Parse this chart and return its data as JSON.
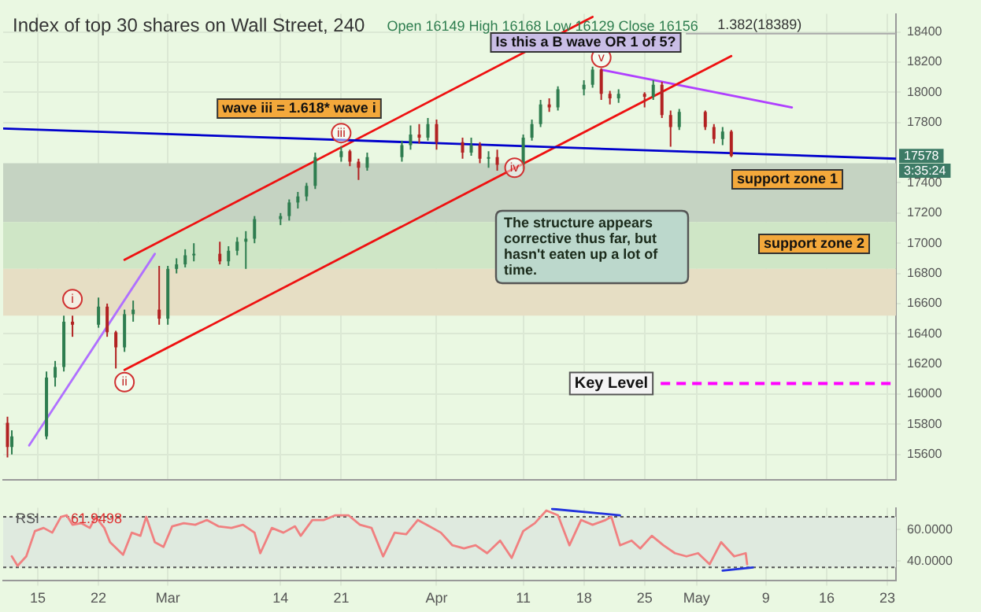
{
  "chart_data": [
    {
      "type": "candlestick",
      "title": "Index of top 30 shares on Wall Street, 240",
      "subtitle": "Open 16149 High 16168 Low 16129 Close 16156",
      "x": [
        "--02-11T12:00",
        "--02-12",
        "--02-16",
        "--02-17",
        "--02-18",
        "--02-19",
        "--02-22",
        "--02-23",
        "--02-24",
        "--02-25",
        "--02-26",
        "--02-29",
        "--03-01",
        "--03-02",
        "--03-03",
        "--03-04",
        "--03-07",
        "--03-08",
        "--03-09",
        "--03-10",
        "--03-11",
        "--03-14",
        "--03-15",
        "--03-16",
        "--03-17",
        "--03-18",
        "--03-21",
        "--03-22",
        "--03-23",
        "--03-24",
        "--03-28",
        "--03-29",
        "--03-30",
        "--03-31",
        "--04-01",
        "--04-04",
        "--04-05",
        "--04-06",
        "--04-07",
        "--04-08",
        "--04-11",
        "--04-12",
        "--04-13",
        "--04-14",
        "--04-15",
        "--04-18",
        "--04-19",
        "--04-20",
        "--04-21",
        "--04-22",
        "--04-25",
        "--04-26",
        "--04-27",
        "--04-28",
        "--04-29",
        "--05-02",
        "--05-03",
        "--05-04",
        "--05-05"
      ],
      "ohlc": [
        [
          15810,
          15850,
          15580,
          15650
        ],
        [
          15650,
          15760,
          15600,
          15720
        ],
        [
          15720,
          16150,
          15700,
          16110
        ],
        [
          16110,
          16220,
          16050,
          16180
        ],
        [
          16180,
          16520,
          16150,
          16480
        ],
        [
          16480,
          16520,
          16380,
          16460
        ],
        [
          16460,
          16640,
          16440,
          16580
        ],
        [
          16580,
          16600,
          16380,
          16410
        ],
        [
          16410,
          16420,
          16170,
          16310
        ],
        [
          16310,
          16560,
          16280,
          16530
        ],
        [
          16530,
          16620,
          16480,
          16560
        ],
        [
          16560,
          16850,
          16460,
          16500
        ],
        [
          16500,
          16850,
          16460,
          16830
        ],
        [
          16830,
          16900,
          16800,
          16860
        ],
        [
          16860,
          16960,
          16840,
          16920
        ],
        [
          16920,
          17000,
          16880,
          16930
        ],
        [
          16930,
          17010,
          16860,
          16880
        ],
        [
          16880,
          16980,
          16850,
          16950
        ],
        [
          16950,
          17040,
          16920,
          17010
        ],
        [
          17010,
          17080,
          16830,
          17030
        ],
        [
          17030,
          17180,
          17000,
          17160
        ],
        [
          17160,
          17200,
          17120,
          17180
        ],
        [
          17180,
          17290,
          17150,
          17270
        ],
        [
          17270,
          17340,
          17230,
          17310
        ],
        [
          17310,
          17400,
          17280,
          17380
        ],
        [
          17380,
          17600,
          17360,
          17570
        ],
        [
          17570,
          17640,
          17540,
          17610
        ],
        [
          17610,
          17620,
          17510,
          17540
        ],
        [
          17540,
          17560,
          17420,
          17500
        ],
        [
          17500,
          17600,
          17480,
          17570
        ],
        [
          17570,
          17680,
          17540,
          17650
        ],
        [
          17650,
          17780,
          17620,
          17720
        ],
        [
          17720,
          17790,
          17660,
          17700
        ],
        [
          17700,
          17830,
          17680,
          17790
        ],
        [
          17790,
          17820,
          17620,
          17670
        ],
        [
          17670,
          17700,
          17560,
          17600
        ],
        [
          17600,
          17700,
          17580,
          17650
        ],
        [
          17650,
          17670,
          17530,
          17560
        ],
        [
          17560,
          17610,
          17500,
          17570
        ],
        [
          17570,
          17620,
          17480,
          17520
        ],
        [
          17520,
          17720,
          17490,
          17700
        ],
        [
          17700,
          17820,
          17680,
          17790
        ],
        [
          17790,
          17950,
          17770,
          17920
        ],
        [
          17920,
          17960,
          17870,
          17900
        ],
        [
          17900,
          18040,
          17880,
          18020
        ],
        [
          18020,
          18080,
          17980,
          18050
        ],
        [
          18050,
          18170,
          18030,
          18150
        ],
        [
          18150,
          18160,
          17950,
          17990
        ],
        [
          17990,
          18010,
          17920,
          17960
        ],
        [
          17960,
          18020,
          17930,
          17990
        ],
        [
          17990,
          18000,
          17900,
          17970
        ],
        [
          17970,
          18080,
          17950,
          18050
        ],
        [
          18050,
          18070,
          17830,
          17850
        ],
        [
          17850,
          17880,
          17640,
          17770
        ],
        [
          17770,
          17890,
          17750,
          17870
        ],
        [
          17870,
          17880,
          17750,
          17770
        ],
        [
          17770,
          17790,
          17660,
          17690
        ],
        [
          17690,
          17770,
          17650,
          17740
        ],
        [
          17740,
          17750,
          17570,
          17578
        ]
      ],
      "colors": [
        "#b22222",
        "#2e7d4f",
        "#2e7d4f",
        "#2e7d4f",
        "#2e7d4f",
        "#b22222",
        "#2e7d4f",
        "#b22222",
        "#b22222",
        "#2e7d4f",
        "#2e7d4f",
        "#b22222",
        "#2e7d4f",
        "#2e7d4f",
        "#2e7d4f",
        "#2e7d4f",
        "#b22222",
        "#2e7d4f",
        "#2e7d4f",
        "#2e7d4f",
        "#2e7d4f",
        "#2e7d4f",
        "#2e7d4f",
        "#2e7d4f",
        "#2e7d4f",
        "#2e7d4f",
        "#2e7d4f",
        "#b22222",
        "#b22222",
        "#2e7d4f",
        "#2e7d4f",
        "#2e7d4f",
        "#b22222",
        "#2e7d4f",
        "#b22222",
        "#b22222",
        "#2e7d4f",
        "#b22222",
        "#2e7d4f",
        "#b22222",
        "#2e7d4f",
        "#2e7d4f",
        "#2e7d4f",
        "#b22222",
        "#2e7d4f",
        "#2e7d4f",
        "#2e7d4f",
        "#b22222",
        "#b22222",
        "#2e7d4f",
        "#b22222",
        "#2e7d4f",
        "#b22222",
        "#b22222",
        "#2e7d4f",
        "#b22222",
        "#b22222",
        "#2e7d4f",
        "#b22222"
      ],
      "series": [
        {
          "type": "line",
          "color": "#0000cc",
          "x": [
            "--02-11",
            "--05-24"
          ],
          "values": [
            17760,
            17560
          ]
        },
        {
          "type": "line",
          "color": "#ee1111",
          "x": [
            "--02-25",
            "--04-19"
          ],
          "values": [
            16890,
            18500
          ]
        },
        {
          "type": "line",
          "color": "#ee1111",
          "x": [
            "--02-25",
            "--05-05"
          ],
          "values": [
            16160,
            18240
          ]
        },
        {
          "type": "line",
          "color": "#b040ff",
          "x": [
            "--04-20",
            "--05-12"
          ],
          "values": [
            18150,
            17900
          ]
        },
        {
          "type": "line",
          "color": "#b070ff",
          "x": [
            "--02-14",
            "--02-28T12:00"
          ],
          "values": [
            15660,
            16930
          ]
        }
      ],
      "xlim": [
        "--02-11",
        "--05-24"
      ],
      "xticks": [
        {
          "value": "--02-15",
          "label": null
        },
        {
          "value": "--02-22",
          "label": null
        },
        {
          "value": "--03-01",
          "label": null
        },
        {
          "value": "--03-14",
          "label": null
        },
        {
          "value": "--03-21",
          "label": null
        },
        {
          "value": "--04-01",
          "label": null
        },
        {
          "value": "--04-11",
          "label": null
        },
        {
          "value": "--04-18",
          "label": null
        },
        {
          "value": "--04-25",
          "label": null
        },
        {
          "value": "--05-01",
          "label": null
        },
        {
          "value": "--05-09",
          "label": null
        },
        {
          "value": "--05-16",
          "label": null
        },
        {
          "value": "--05-23",
          "label": null
        }
      ],
      "ylim": [
        15430,
        18520
      ],
      "yticks": [
        15600,
        15800,
        16000,
        16200,
        16400,
        16600,
        16800,
        17000,
        17200,
        17400,
        17800,
        18000,
        18200,
        18400
      ],
      "tick_labels": "y",
      "grid": true,
      "bands": [
        {
          "axis": "y",
          "from": 17140,
          "to": 17530,
          "color": "#c5d3c2"
        },
        {
          "axis": "y",
          "from": 16830,
          "to": 17140,
          "color": "#cfe6c6"
        },
        {
          "axis": "y",
          "from": 16520,
          "to": 16830,
          "color": "#e6dec4"
        }
      ],
      "ref_lines": [
        {
          "axis": "y",
          "value": 18389,
          "label": "1.382(18389)",
          "color": "#aaaaaa"
        },
        {
          "axis": "y",
          "value": 16070,
          "label": "Key Level",
          "color": "#ff00ff",
          "line_style": "dashed"
        }
      ],
      "annotations": [
        {
          "text": "i",
          "x": "--02-19",
          "y": 16630
        },
        {
          "text": "ii",
          "x": "--02-25",
          "y": 16080
        },
        {
          "text": "iii",
          "x": "--03-21",
          "y": 17730
        },
        {
          "text": "iv",
          "x": "--04-10",
          "y": 17500
        },
        {
          "text": "v",
          "x": "--04-20",
          "y": 18230
        },
        "wave iii = 1.618* wave i",
        "Is this a B wave OR 1 of 5?",
        "The structure appears corrective thus far, but hasn't eaten up a lot of time.",
        "support zone 1",
        "support zone 2",
        {
          "text": "17578",
          "x": "--05-24",
          "y": 17578
        },
        {
          "text": "3:35:24",
          "x": "--05-24",
          "y": 17480
        }
      ]
    },
    {
      "type": "line",
      "series": [
        {
          "color": "#f08080",
          "x": [
            "--02-12T00:00",
            "--02-12T16:00",
            "--02-13T16:00",
            "--02-14T16:00",
            "--02-15T16:00",
            "--02-16T16:00",
            "--02-17T16:00",
            "--02-18T08:00",
            "--02-19T00:00",
            "--02-20T00:00",
            "--02-21T00:00",
            "--02-21T16:00",
            "--02-22T16:00",
            "--02-23T08:00",
            "--02-24T20:00",
            "--02-25T20:00",
            "--02-26T20:00",
            "--02-27T12:00",
            "--02-28T12:00",
            "--02-29T12:00",
            "--03-01T12:00",
            "--03-02T20:00",
            "--03-04T04:00",
            "--03-05T12:00",
            "--03-06T20:00",
            "--03-08T08:00",
            "--03-09T16:00",
            "--03-11T00:00",
            "--03-11T16:00",
            "--03-13T00:00",
            "--03-14T08:00",
            "--03-15T16:00",
            "--03-16T08:00",
            "--03-17T16:00",
            "--03-19T00:00",
            "--03-20T08:00",
            "--03-21T20:00",
            "--03-23T04:00",
            "--03-24T12:00",
            "--03-25T20:00",
            "--03-27T04:00",
            "--03-28T12:00",
            "--03-29T20:00",
            "--03-31T04:00",
            "--04-01T12:00",
            "--04-02T20:00",
            "--04-04T04:00",
            "--04-05T12:00",
            "--04-06T20:00",
            "--04-08T08:00",
            "--04-09T16:00",
            "--04-11T00:00",
            "--04-12T08:00",
            "--04-13T16:00",
            "--04-15T00:00",
            "--04-16T08:00",
            "--04-17T16:00",
            "--04-19T00:00",
            "--04-20T12:00",
            "--04-21T04:00",
            "--04-22T04:00",
            "--04-23T12:00",
            "--04-24T12:00",
            "--04-25T20:00",
            "--04-27T04:00",
            "--04-28T12:00",
            "--04-29T20:00",
            "--05-01T04:00",
            "--05-02T12:00",
            "--05-03T20:00",
            "--05-05T08:00",
            "--05-06T16:00",
            "--05-06T20:00"
          ],
          "values": [
            43,
            37,
            43,
            59,
            61,
            58,
            68,
            69,
            63,
            64,
            61,
            68,
            61,
            52,
            44,
            58,
            56,
            68,
            52,
            49,
            62,
            64,
            63,
            66,
            62,
            61,
            63,
            58,
            45,
            61,
            58,
            62,
            56,
            66,
            66,
            69,
            69,
            63,
            61,
            43,
            58,
            57,
            66,
            62,
            58,
            50,
            48,
            50,
            45,
            53,
            42,
            59,
            64,
            72,
            69,
            50,
            66,
            63,
            66,
            68,
            50,
            53,
            48,
            56,
            50,
            45,
            43,
            45,
            38,
            52,
            43,
            45,
            38
          ]
        },
        {
          "color": "#2233dd",
          "x": [
            "--04-14T08:00",
            "--04-22T04:00"
          ],
          "values": [
            73,
            69
          ]
        },
        {
          "color": "#2233dd",
          "x": [
            "--05-04T00:00",
            "--05-07T12:00"
          ],
          "values": [
            34,
            36
          ]
        }
      ],
      "xlim": [
        "--02-11",
        "--05-24"
      ],
      "xticks": [
        {
          "value": "--02-15",
          "label": "15"
        },
        {
          "value": "--02-22",
          "label": "22"
        },
        {
          "value": "--03-01",
          "label": "Mar"
        },
        {
          "value": "--03-14",
          "label": "14"
        },
        {
          "value": "--03-21",
          "label": "21"
        },
        {
          "value": "--04-01",
          "label": "Apr"
        },
        {
          "value": "--04-11",
          "label": "11"
        },
        {
          "value": "--04-18",
          "label": "18"
        },
        {
          "value": "--04-25",
          "label": "25"
        },
        {
          "value": "--05-01",
          "label": "May"
        },
        {
          "value": "--05-09",
          "label": "9"
        },
        {
          "value": "--05-16",
          "label": "16"
        },
        {
          "value": "--05-23",
          "label": "23"
        }
      ],
      "ylim": [
        27.5,
        73.7
      ],
      "yticks": [
        {
          "value": 40,
          "label": "40.0000"
        },
        {
          "value": 60,
          "label": "60.0000"
        }
      ],
      "grid": true,
      "bands": [
        {
          "axis": "y",
          "from": 36,
          "to": 68,
          "color": "#dfeadf"
        }
      ],
      "ref_lines": [
        {
          "axis": "y",
          "value": 68,
          "color": "#555555",
          "line_style": "dotted"
        },
        {
          "axis": "y",
          "value": 36,
          "color": "#555555",
          "line_style": "dotted"
        }
      ],
      "annotations": [
        "RSI",
        "61.9498"
      ]
    }
  ]
}
